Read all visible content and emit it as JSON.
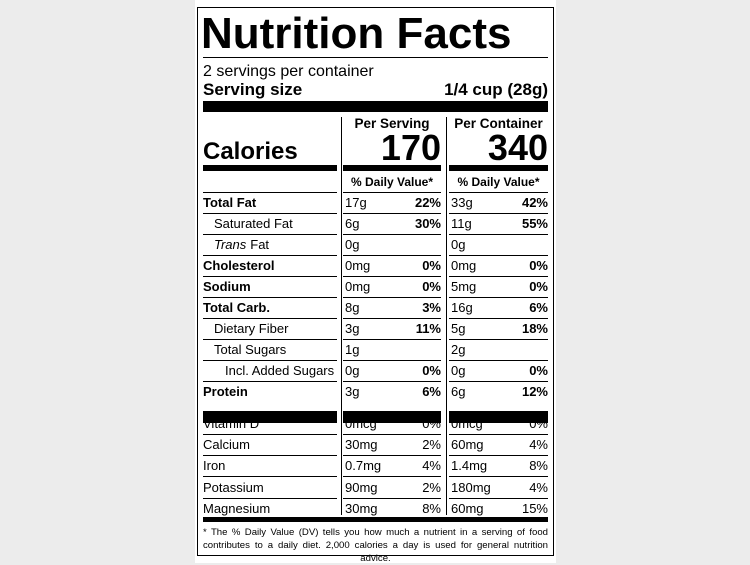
{
  "label": {
    "title": "Nutrition Facts",
    "servings": "2 servings per container",
    "serving_size_label": "Serving size",
    "serving_size_value": "1/4 cup (28g)",
    "column_headers": [
      "Per Serving",
      "Per Container"
    ],
    "calories_label": "Calories",
    "calories": [
      "170",
      "340"
    ],
    "daily_value_header": "% Daily Value*",
    "nutrients": [
      {
        "name": "Total Fat",
        "bold": true,
        "indent": 0,
        "serving": [
          "17g",
          "22%"
        ],
        "container": [
          "33g",
          "42%"
        ]
      },
      {
        "name": "Saturated Fat",
        "bold": false,
        "indent": 1,
        "serving": [
          "6g",
          "30%"
        ],
        "container": [
          "11g",
          "55%"
        ]
      },
      {
        "name_parts": [
          "Trans",
          "Fat"
        ],
        "bold": false,
        "indent": 1,
        "serving": [
          "0g",
          null
        ],
        "container": [
          "0g",
          null
        ]
      },
      {
        "name": "Cholesterol",
        "bold": true,
        "indent": 0,
        "serving": [
          "0mg",
          "0%"
        ],
        "container": [
          "0mg",
          "0%"
        ]
      },
      {
        "name": "Sodium",
        "bold": true,
        "indent": 0,
        "serving": [
          "0mg",
          "0%"
        ],
        "container": [
          "5mg",
          "0%"
        ]
      },
      {
        "name": "Total Carb.",
        "bold": true,
        "indent": 0,
        "serving": [
          "8g",
          "3%"
        ],
        "container": [
          "16g",
          "6%"
        ]
      },
      {
        "name": "Dietary Fiber",
        "bold": false,
        "indent": 1,
        "serving": [
          "3g",
          "11%"
        ],
        "container": [
          "5g",
          "18%"
        ]
      },
      {
        "name": "Total Sugars",
        "bold": false,
        "indent": 1,
        "serving": [
          "1g",
          null
        ],
        "container": [
          "2g",
          null
        ]
      },
      {
        "name": "Incl. Added Sugars",
        "bold": false,
        "indent": 2,
        "serving": [
          "0g",
          "0%"
        ],
        "container": [
          "0g",
          "0%"
        ]
      },
      {
        "name": "Protein",
        "bold": true,
        "indent": 0,
        "serving": [
          "3g",
          "6%"
        ],
        "container": [
          "6g",
          "12%"
        ]
      }
    ],
    "vitamins": [
      {
        "name": "Vitamin D",
        "serving": [
          "0mcg",
          "0%"
        ],
        "container": [
          "0mcg",
          "0%"
        ]
      },
      {
        "name": "Calcium",
        "serving": [
          "30mg",
          "2%"
        ],
        "container": [
          "60mg",
          "4%"
        ]
      },
      {
        "name": "Iron",
        "serving": [
          "0.7mg",
          "4%"
        ],
        "container": [
          "1.4mg",
          "8%"
        ]
      },
      {
        "name": "Potassium",
        "serving": [
          "90mg",
          "2%"
        ],
        "container": [
          "180mg",
          "4%"
        ]
      },
      {
        "name": "Magnesium",
        "serving": [
          "30mg",
          "8%"
        ],
        "container": [
          "60mg",
          "15%"
        ]
      }
    ],
    "footnote": "* The % Daily Value (DV) tells you how much a nutrient in a serving of food contributes to a daily diet. 2,000 calories a day is used for general nutrition advice."
  }
}
